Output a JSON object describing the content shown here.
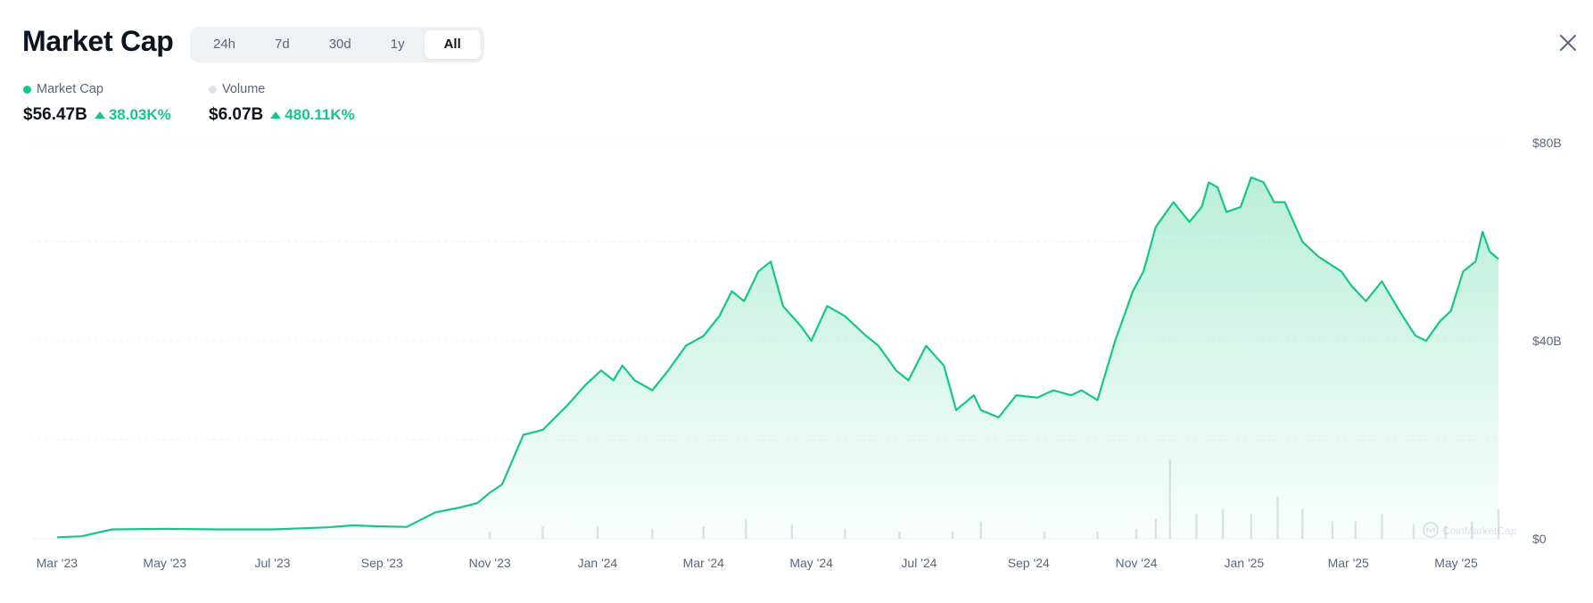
{
  "header": {
    "title": "Market Cap"
  },
  "range_tabs": [
    {
      "label": "24h",
      "active": false
    },
    {
      "label": "7d",
      "active": false
    },
    {
      "label": "30d",
      "active": false
    },
    {
      "label": "1y",
      "active": false
    },
    {
      "label": "All",
      "active": true
    }
  ],
  "legend": {
    "market_cap": {
      "label": "Market Cap",
      "value": "$56.47B",
      "change": "38.03K%",
      "color": "#16c784"
    },
    "volume": {
      "label": "Volume",
      "value": "$6.07B",
      "change": "480.11K%",
      "color": "#dfe3e8"
    }
  },
  "icons": {
    "close": "close-icon",
    "change_up": "triangle-up-icon",
    "watermark": "coinmarketcap-logo-icon"
  },
  "watermark": "CoinMarketCap",
  "chart_data": {
    "type": "area",
    "x_labels": [
      "Mar '23",
      "May '23",
      "Jul '23",
      "Sep '23",
      "Nov '23",
      "Jan '24",
      "Mar '24",
      "May '24",
      "Jul '24",
      "Sep '24",
      "Nov '24",
      "Jan '25",
      "Mar '25",
      "May '25"
    ],
    "y_tick_labels": [
      "$80B",
      "$40B",
      "$0"
    ],
    "ylim": [
      0,
      80
    ],
    "y_unit": "B USD",
    "grid": true,
    "series": [
      {
        "name": "Market Cap",
        "color": "#16c784",
        "x": [
          "2023-03-01",
          "2023-03-15",
          "2023-04-01",
          "2023-05-01",
          "2023-06-01",
          "2023-07-01",
          "2023-08-01",
          "2023-08-15",
          "2023-09-01",
          "2023-09-15",
          "2023-10-01",
          "2023-10-15",
          "2023-10-25",
          "2023-11-01",
          "2023-11-08",
          "2023-11-20",
          "2023-12-01",
          "2023-12-15",
          "2023-12-25",
          "2024-01-03",
          "2024-01-10",
          "2024-01-15",
          "2024-01-22",
          "2024-02-01",
          "2024-02-10",
          "2024-02-20",
          "2024-03-01",
          "2024-03-10",
          "2024-03-17",
          "2024-03-24",
          "2024-04-01",
          "2024-04-08",
          "2024-04-15",
          "2024-04-25",
          "2024-05-01",
          "2024-05-10",
          "2024-05-20",
          "2024-05-26",
          "2024-06-01",
          "2024-06-08",
          "2024-06-18",
          "2024-06-25",
          "2024-07-05",
          "2024-07-15",
          "2024-07-22",
          "2024-08-01",
          "2024-08-05",
          "2024-08-15",
          "2024-08-25",
          "2024-09-06",
          "2024-09-15",
          "2024-09-25",
          "2024-10-01",
          "2024-10-10",
          "2024-10-20",
          "2024-10-30",
          "2024-11-05",
          "2024-11-12",
          "2024-11-22",
          "2024-12-01",
          "2024-12-08",
          "2024-12-12",
          "2024-12-17",
          "2024-12-22",
          "2024-12-30",
          "2025-01-05",
          "2025-01-12",
          "2025-01-18",
          "2025-01-24",
          "2025-02-03",
          "2025-02-12",
          "2025-02-25",
          "2025-03-03",
          "2025-03-11",
          "2025-03-20",
          "2025-03-30",
          "2025-04-08",
          "2025-04-14",
          "2025-04-22",
          "2025-04-28",
          "2025-05-05",
          "2025-05-12",
          "2025-05-16",
          "2025-05-20",
          "2025-05-25"
        ],
        "values": [
          0.3,
          0.5,
          1.9,
          2.0,
          1.9,
          1.9,
          2.3,
          2.7,
          2.5,
          2.4,
          5.3,
          6.3,
          7.2,
          9.3,
          11.0,
          21.0,
          22.0,
          27.0,
          31.0,
          34.0,
          32.0,
          35.0,
          32.0,
          30.0,
          34.0,
          39.0,
          41.0,
          45.0,
          50.0,
          48.0,
          54.0,
          56.0,
          47.0,
          43.0,
          40.0,
          47.0,
          45.0,
          43.0,
          41.0,
          39.0,
          34.0,
          32.0,
          39.0,
          35.0,
          26.0,
          29.0,
          26.0,
          24.5,
          29.0,
          28.5,
          30.0,
          29.0,
          30.0,
          28.0,
          40.0,
          50.0,
          54.0,
          63.0,
          68.0,
          64.0,
          67.0,
          72.0,
          71.0,
          66.0,
          67.0,
          73.0,
          72.0,
          68.0,
          68.0,
          60.0,
          57.0,
          54.0,
          51.0,
          48.0,
          52.0,
          46.0,
          41.0,
          40.0,
          44.0,
          46.0,
          54.0,
          56.0,
          62.0,
          58.0,
          56.5
        ]
      },
      {
        "name": "Volume",
        "color": "#dfe3e8",
        "x": [
          "2023-11-01",
          "2023-12-01",
          "2024-01-01",
          "2024-02-01",
          "2024-03-01",
          "2024-03-25",
          "2024-04-20",
          "2024-05-20",
          "2024-06-20",
          "2024-07-20",
          "2024-08-05",
          "2024-09-10",
          "2024-10-10",
          "2024-11-01",
          "2024-11-12",
          "2024-11-20",
          "2024-12-05",
          "2024-12-20",
          "2025-01-05",
          "2025-01-20",
          "2025-02-03",
          "2025-02-20",
          "2025-03-05",
          "2025-03-20",
          "2025-04-07",
          "2025-04-25",
          "2025-05-10",
          "2025-05-25"
        ],
        "values": [
          1.5,
          2.5,
          2.5,
          2.0,
          2.5,
          4.0,
          3.0,
          2.0,
          1.5,
          1.5,
          3.5,
          1.5,
          1.5,
          2.0,
          4.0,
          16.0,
          5.0,
          6.0,
          5.0,
          8.5,
          6.0,
          3.5,
          3.5,
          5.0,
          3.0,
          2.5,
          3.5,
          6.0
        ]
      }
    ]
  }
}
